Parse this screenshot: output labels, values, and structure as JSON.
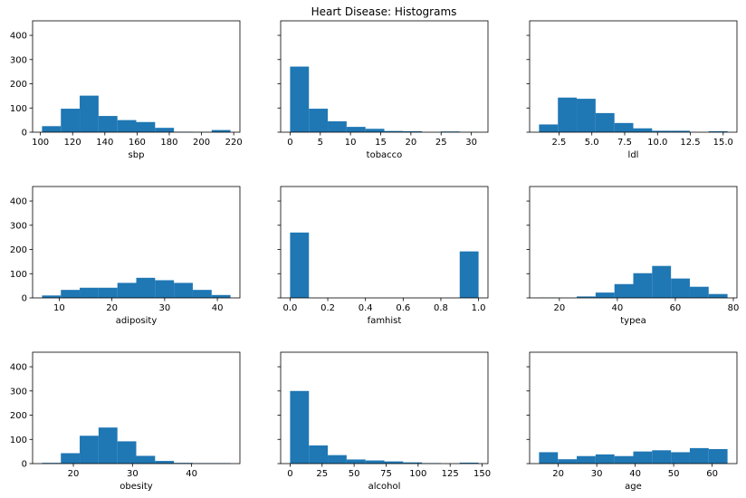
{
  "title": "Heart Disease: Histograms",
  "chart_data": [
    {
      "type": "histogram",
      "xlabel": "sbp",
      "color": "#1f77b4",
      "bins": [
        101,
        112.7,
        124.4,
        136.1,
        147.8,
        159.5,
        171.2,
        182.9,
        194.6,
        206.3,
        218
      ],
      "values": [
        25,
        97,
        151,
        67,
        50,
        42,
        18,
        2,
        1,
        9
      ],
      "xlim": [
        95.15,
        223.85
      ],
      "xticks": [
        100,
        120,
        140,
        160,
        180,
        200,
        220
      ],
      "ylim": [
        0,
        460
      ],
      "yticks": [
        0,
        100,
        200,
        300,
        400
      ]
    },
    {
      "type": "histogram",
      "xlabel": "tobacco",
      "color": "#1f77b4",
      "bins": [
        0,
        3.12,
        6.24,
        9.36,
        12.48,
        15.6,
        18.72,
        21.84,
        24.96,
        28.08,
        31.2
      ],
      "values": [
        271,
        97,
        45,
        22,
        14,
        5,
        4,
        0,
        3,
        1
      ],
      "xlim": [
        -1.56,
        32.76
      ],
      "xticks": [
        0,
        5,
        10,
        15,
        20,
        25,
        30
      ],
      "ylim": [
        0,
        460
      ],
      "yticks": [
        0,
        100,
        200,
        300,
        400
      ]
    },
    {
      "type": "histogram",
      "xlabel": "ldl",
      "color": "#1f77b4",
      "bins": [
        0.98,
        2.415,
        3.85,
        5.285,
        6.72,
        8.155,
        9.59,
        11.025,
        12.46,
        13.895,
        15.33
      ],
      "values": [
        32,
        143,
        138,
        79,
        38,
        16,
        6,
        6,
        0,
        4
      ],
      "xlim": [
        0.2625,
        16.0475
      ],
      "xticks": [
        {
          "value": 2.5,
          "label": "2.5"
        },
        {
          "value": 5,
          "label": "5.0"
        },
        {
          "value": 7.5,
          "label": "7.5"
        },
        {
          "value": 10,
          "label": "10.0"
        },
        {
          "value": 12.5,
          "label": "12.5"
        },
        {
          "value": 15,
          "label": "15.0"
        }
      ],
      "ylim": [
        0,
        460
      ],
      "yticks": [
        0,
        100,
        200,
        300,
        400
      ]
    },
    {
      "type": "histogram",
      "xlabel": "adiposity",
      "color": "#1f77b4",
      "bins": [
        6.74,
        10.315,
        13.89,
        17.465,
        21.04,
        24.615,
        28.19,
        31.765,
        35.34,
        38.915,
        42.49
      ],
      "values": [
        10,
        33,
        42,
        42,
        62,
        83,
        73,
        62,
        33,
        12
      ],
      "xlim": [
        4.95,
        44.28
      ],
      "xticks": [
        10,
        20,
        30,
        40
      ],
      "ylim": [
        0,
        460
      ],
      "yticks": [
        0,
        100,
        200,
        300,
        400
      ]
    },
    {
      "type": "histogram",
      "xlabel": "famhist",
      "color": "#1f77b4",
      "bins": [
        0,
        0.1,
        0.2,
        0.3,
        0.4,
        0.5,
        0.6,
        0.7,
        0.8,
        0.9,
        1
      ],
      "values": [
        270,
        0,
        0,
        0,
        0,
        0,
        0,
        0,
        0,
        192
      ],
      "xlim": [
        -0.05,
        1.05
      ],
      "xticks": [
        {
          "value": 0,
          "label": "0.0"
        },
        {
          "value": 0.2,
          "label": "0.2"
        },
        {
          "value": 0.4,
          "label": "0.4"
        },
        {
          "value": 0.6,
          "label": "0.6"
        },
        {
          "value": 0.8,
          "label": "0.8"
        },
        {
          "value": 1,
          "label": "1.0"
        }
      ],
      "ylim": [
        0,
        460
      ],
      "yticks": [
        0,
        100,
        200,
        300,
        400
      ]
    },
    {
      "type": "histogram",
      "xlabel": "typea",
      "color": "#1f77b4",
      "bins": [
        13,
        19.5,
        26,
        32.5,
        39,
        45.5,
        52,
        58.5,
        65,
        71.5,
        78
      ],
      "values": [
        1,
        0,
        6,
        22,
        57,
        102,
        132,
        80,
        46,
        16
      ],
      "xlim": [
        9.75,
        81.25
      ],
      "xticks": [
        20,
        40,
        60,
        80
      ],
      "ylim": [
        0,
        460
      ],
      "yticks": [
        0,
        100,
        200,
        300,
        400
      ]
    },
    {
      "type": "histogram",
      "xlabel": "obesity",
      "color": "#1f77b4",
      "bins": [
        14.7,
        17.888,
        21.076,
        24.264,
        27.452,
        30.64,
        33.828,
        37.016,
        40.204,
        43.392,
        46.58
      ],
      "values": [
        3,
        43,
        115,
        149,
        92,
        32,
        11,
        3,
        2,
        2
      ],
      "xlim": [
        13.106,
        48.174
      ],
      "xticks": [
        20,
        30,
        40
      ],
      "ylim": [
        0,
        460
      ],
      "yticks": [
        0,
        100,
        200,
        300,
        400
      ]
    },
    {
      "type": "histogram",
      "xlabel": "alcohol",
      "color": "#1f77b4",
      "bins": [
        0,
        14.72,
        29.44,
        44.16,
        58.88,
        73.6,
        88.32,
        103.04,
        117.76,
        132.48,
        147.19
      ],
      "values": [
        300,
        75,
        35,
        17,
        13,
        9,
        5,
        2,
        0,
        4
      ],
      "xlim": [
        -7.36,
        154.55
      ],
      "xticks": [
        0,
        25,
        50,
        75,
        100,
        125,
        150
      ],
      "ylim": [
        0,
        460
      ],
      "yticks": [
        0,
        100,
        200,
        300,
        400
      ]
    },
    {
      "type": "histogram",
      "xlabel": "age",
      "color": "#1f77b4",
      "bins": [
        15,
        19.9,
        24.8,
        29.7,
        34.6,
        39.5,
        44.4,
        49.3,
        54.2,
        59.1,
        64
      ],
      "values": [
        47,
        18,
        31,
        38,
        31,
        50,
        55,
        47,
        64,
        60
      ],
      "xlim": [
        12.55,
        66.45
      ],
      "xticks": [
        20,
        30,
        40,
        50,
        60
      ],
      "ylim": [
        0,
        460
      ],
      "yticks": [
        0,
        100,
        200,
        300,
        400
      ]
    }
  ]
}
